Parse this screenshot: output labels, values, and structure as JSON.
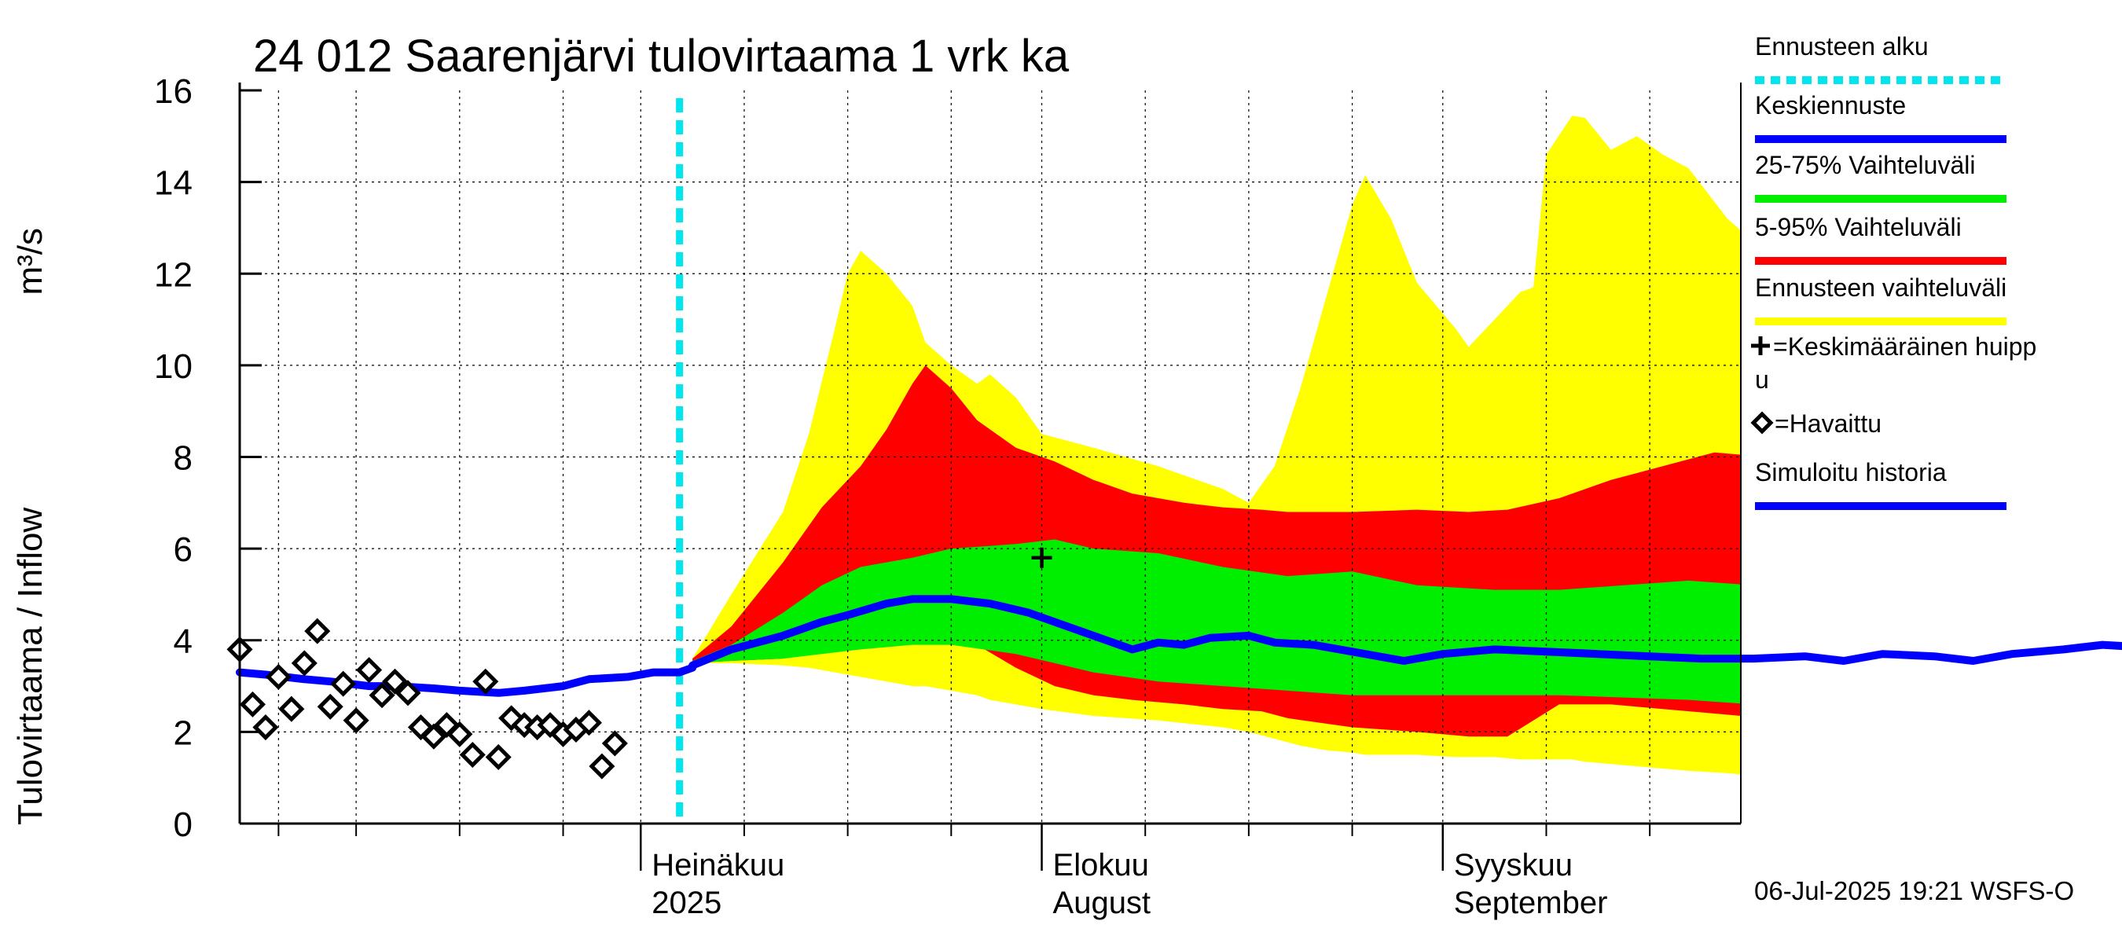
{
  "title": "24 012 Saarenjärvi tulovirtaama 1 vrk ka",
  "ylabel_fi": "Tulovirtaama / Inflow",
  "ylabel_unit": "m³/s",
  "timestamp": "06-Jul-2025 19:21 WSFS-O",
  "colors": {
    "forecast_start": "#00e5ee",
    "median": "#0000ff",
    "p25_75": "#00ee00",
    "p5_95": "#ff0000",
    "range": "#ffff00",
    "history": "#0000ff",
    "observed": "#000000"
  },
  "legend": [
    {
      "label": "Ennusteen alku",
      "kind": "dashed",
      "color": "#00e5ee"
    },
    {
      "label": "Keskiennuste",
      "kind": "line",
      "color": "#0000ff"
    },
    {
      "label": "25-75% Vaihteluväli",
      "kind": "line",
      "color": "#00ee00"
    },
    {
      "label": "5-95% Vaihteluväli",
      "kind": "line",
      "color": "#ff0000"
    },
    {
      "label": "Ennusteen vaihteluväli",
      "kind": "line",
      "color": "#ffff00"
    },
    {
      "label": "=Keskimääräinen huipp",
      "label2": "u",
      "kind": "plus",
      "color": "#000000"
    },
    {
      "label": "=Havaittu",
      "kind": "diamond",
      "color": "#000000"
    },
    {
      "label": "Simuloitu historia",
      "kind": "line",
      "color": "#0000ff"
    }
  ],
  "chart_data": {
    "type": "area",
    "title": "24 012 Saarenjärvi tulovirtaama 1 vrk ka",
    "ylabel": "Tulovirtaama / Inflow    m³/s",
    "ylim": [
      0,
      16
    ],
    "yticks": [
      "0",
      "2",
      "4",
      "6",
      "8",
      "10",
      "12",
      "14",
      "16"
    ],
    "xlim": [
      "2025-06-01",
      "2025-09-30"
    ],
    "month_labels": [
      {
        "date": "2025-07-01",
        "line1": "Heinäkuu",
        "line2": "2025"
      },
      {
        "date": "2025-08-01",
        "line1": "Elokuu",
        "line2": "August"
      },
      {
        "date": "2025-09-01",
        "line1": "Syyskuu",
        "line2": "September"
      }
    ],
    "forecast_start": "2025-07-04",
    "grid": true,
    "legend_position": "right",
    "bands": {
      "range": [
        {
          "date": "2025-07-05",
          "lo": 3.5,
          "hi": 3.6
        },
        {
          "date": "2025-07-08",
          "lo": 3.5,
          "hi": 5.0
        },
        {
          "date": "2025-07-12",
          "lo": 3.45,
          "hi": 6.8
        },
        {
          "date": "2025-07-14",
          "lo": 3.4,
          "hi": 8.5
        },
        {
          "date": "2025-07-16",
          "lo": 3.3,
          "hi": 10.8
        },
        {
          "date": "2025-07-17",
          "lo": 3.25,
          "hi": 12.0
        },
        {
          "date": "2025-07-18",
          "lo": 3.2,
          "hi": 12.5
        },
        {
          "date": "2025-07-20",
          "lo": 3.1,
          "hi": 12.0
        },
        {
          "date": "2025-07-22",
          "lo": 3.0,
          "hi": 11.3
        },
        {
          "date": "2025-07-23",
          "lo": 3.0,
          "hi": 10.5
        },
        {
          "date": "2025-07-25",
          "lo": 2.9,
          "hi": 10.0
        },
        {
          "date": "2025-07-27",
          "lo": 2.8,
          "hi": 9.6
        },
        {
          "date": "2025-07-28",
          "lo": 2.7,
          "hi": 9.8
        },
        {
          "date": "2025-07-30",
          "lo": 2.6,
          "hi": 9.3
        },
        {
          "date": "2025-08-01",
          "lo": 2.5,
          "hi": 8.5
        },
        {
          "date": "2025-08-05",
          "lo": 2.35,
          "hi": 8.2
        },
        {
          "date": "2025-08-10",
          "lo": 2.25,
          "hi": 7.8
        },
        {
          "date": "2025-08-15",
          "lo": 2.1,
          "hi": 7.3
        },
        {
          "date": "2025-08-17",
          "lo": 2.0,
          "hi": 7.0
        },
        {
          "date": "2025-08-19",
          "lo": 1.85,
          "hi": 7.8
        },
        {
          "date": "2025-08-21",
          "lo": 1.7,
          "hi": 9.5
        },
        {
          "date": "2025-08-23",
          "lo": 1.6,
          "hi": 11.5
        },
        {
          "date": "2025-08-25",
          "lo": 1.55,
          "hi": 13.5
        },
        {
          "date": "2025-08-26",
          "lo": 1.5,
          "hi": 14.15
        },
        {
          "date": "2025-08-28",
          "lo": 1.5,
          "hi": 13.2
        },
        {
          "date": "2025-08-30",
          "lo": 1.5,
          "hi": 11.8
        },
        {
          "date": "2025-09-02",
          "lo": 1.45,
          "hi": 10.8
        },
        {
          "date": "2025-09-03",
          "lo": 1.45,
          "hi": 10.4
        },
        {
          "date": "2025-09-05",
          "lo": 1.45,
          "hi": 11.0
        },
        {
          "date": "2025-09-07",
          "lo": 1.4,
          "hi": 11.6
        },
        {
          "date": "2025-09-08",
          "lo": 1.4,
          "hi": 11.7
        },
        {
          "date": "2025-09-09",
          "lo": 1.4,
          "hi": 14.6
        },
        {
          "date": "2025-09-11",
          "lo": 1.4,
          "hi": 15.45
        },
        {
          "date": "2025-09-12",
          "lo": 1.35,
          "hi": 15.4
        },
        {
          "date": "2025-09-14",
          "lo": 1.3,
          "hi": 14.7
        },
        {
          "date": "2025-09-16",
          "lo": 1.25,
          "hi": 15.0
        },
        {
          "date": "2025-09-18",
          "lo": 1.2,
          "hi": 14.6
        },
        {
          "date": "2025-09-20",
          "lo": 1.15,
          "hi": 14.3
        },
        {
          "date": "2025-09-23",
          "lo": 1.1,
          "hi": 13.2
        },
        {
          "date": "2025-09-25",
          "lo": 1.05,
          "hi": 12.7
        },
        {
          "date": "2025-09-27",
          "lo": 1.15,
          "hi": 11.5
        },
        {
          "date": "2025-09-29",
          "lo": 1.15,
          "hi": 10.7
        },
        {
          "date": "2025-10-01",
          "lo": 1.1,
          "hi": 10.4
        },
        {
          "date": "2025-10-03",
          "lo": 1.1,
          "hi": 10.7
        },
        {
          "date": "2025-10-04",
          "lo": 1.1,
          "hi": 11.5
        },
        {
          "date": "2025-10-05",
          "lo": 1.1,
          "hi": 13.7
        },
        {
          "date": "2025-10-06",
          "lo": 1.15,
          "hi": 14.0
        },
        {
          "date": "2025-10-08",
          "lo": 1.15,
          "hi": 13.5
        },
        {
          "date": "2025-10-10",
          "lo": 1.15,
          "hi": 12.5
        },
        {
          "date": "2025-10-12",
          "lo": 1.2,
          "hi": 11.0
        },
        {
          "date": "2025-10-13",
          "lo": 1.2,
          "hi": 10.6
        },
        {
          "date": "2025-10-16",
          "lo": 1.35,
          "hi": 10.3
        },
        {
          "date": "2025-10-19",
          "lo": 1.4,
          "hi": 10.0
        },
        {
          "date": "2025-10-22",
          "lo": 1.4,
          "hi": 9.5
        }
      ],
      "p5_95": [
        {
          "date": "2025-07-05",
          "lo": 3.5,
          "hi": 3.6
        },
        {
          "date": "2025-07-08",
          "lo": 3.55,
          "hi": 4.3
        },
        {
          "date": "2025-07-12",
          "lo": 3.6,
          "hi": 5.7
        },
        {
          "date": "2025-07-15",
          "lo": 3.8,
          "hi": 6.9
        },
        {
          "date": "2025-07-18",
          "lo": 4.0,
          "hi": 7.8
        },
        {
          "date": "2025-07-20",
          "lo": 4.1,
          "hi": 8.6
        },
        {
          "date": "2025-07-22",
          "lo": 4.2,
          "hi": 9.6
        },
        {
          "date": "2025-07-23",
          "lo": 4.2,
          "hi": 10.0
        },
        {
          "date": "2025-07-25",
          "lo": 4.1,
          "hi": 9.5
        },
        {
          "date": "2025-07-27",
          "lo": 3.9,
          "hi": 8.8
        },
        {
          "date": "2025-07-30",
          "lo": 3.4,
          "hi": 8.2
        },
        {
          "date": "2025-08-02",
          "lo": 3.0,
          "hi": 7.9
        },
        {
          "date": "2025-08-05",
          "lo": 2.8,
          "hi": 7.5
        },
        {
          "date": "2025-08-08",
          "lo": 2.7,
          "hi": 7.2
        },
        {
          "date": "2025-08-12",
          "lo": 2.6,
          "hi": 7.0
        },
        {
          "date": "2025-08-15",
          "lo": 2.5,
          "hi": 6.9
        },
        {
          "date": "2025-08-18",
          "lo": 2.45,
          "hi": 6.85
        },
        {
          "date": "2025-08-20",
          "lo": 2.3,
          "hi": 6.8
        },
        {
          "date": "2025-08-25",
          "lo": 2.1,
          "hi": 6.8
        },
        {
          "date": "2025-08-30",
          "lo": 2.0,
          "hi": 6.85
        },
        {
          "date": "2025-09-03",
          "lo": 1.9,
          "hi": 6.8
        },
        {
          "date": "2025-09-06",
          "lo": 1.9,
          "hi": 6.85
        },
        {
          "date": "2025-09-10",
          "lo": 2.6,
          "hi": 7.1
        },
        {
          "date": "2025-09-14",
          "lo": 2.6,
          "hi": 7.5
        },
        {
          "date": "2025-09-18",
          "lo": 2.5,
          "hi": 7.8
        },
        {
          "date": "2025-09-22",
          "lo": 2.4,
          "hi": 8.1
        },
        {
          "date": "2025-09-26",
          "lo": 2.3,
          "hi": 8.0
        },
        {
          "date": "2025-09-29",
          "lo": 2.2,
          "hi": 7.8
        },
        {
          "date": "2025-10-01",
          "lo": 2.3,
          "hi": 8.4
        },
        {
          "date": "2025-10-04",
          "lo": 2.3,
          "hi": 9.0
        },
        {
          "date": "2025-10-07",
          "lo": 2.2,
          "hi": 9.7
        },
        {
          "date": "2025-10-09",
          "lo": 2.3,
          "hi": 9.9
        },
        {
          "date": "2025-10-12",
          "lo": 2.2,
          "hi": 9.6
        },
        {
          "date": "2025-10-15",
          "lo": 2.5,
          "hi": 9.5
        },
        {
          "date": "2025-10-18",
          "lo": 2.4,
          "hi": 9.3
        },
        {
          "date": "2025-10-21",
          "lo": 2.7,
          "hi": 9.2
        },
        {
          "date": "2025-10-23",
          "lo": 2.9,
          "hi": 9.0
        }
      ],
      "p25_75": [
        {
          "date": "2025-07-05",
          "lo": 3.5,
          "hi": 3.55
        },
        {
          "date": "2025-07-08",
          "lo": 3.55,
          "hi": 3.9
        },
        {
          "date": "2025-07-12",
          "lo": 3.6,
          "hi": 4.6
        },
        {
          "date": "2025-07-15",
          "lo": 3.7,
          "hi": 5.2
        },
        {
          "date": "2025-07-18",
          "lo": 3.8,
          "hi": 5.6
        },
        {
          "date": "2025-07-22",
          "lo": 3.9,
          "hi": 5.8
        },
        {
          "date": "2025-07-25",
          "lo": 3.9,
          "hi": 6.0
        },
        {
          "date": "2025-07-30",
          "lo": 3.7,
          "hi": 6.1
        },
        {
          "date": "2025-08-02",
          "lo": 3.5,
          "hi": 6.2
        },
        {
          "date": "2025-08-05",
          "lo": 3.3,
          "hi": 6.0
        },
        {
          "date": "2025-08-10",
          "lo": 3.1,
          "hi": 5.9
        },
        {
          "date": "2025-08-15",
          "lo": 3.0,
          "hi": 5.6
        },
        {
          "date": "2025-08-20",
          "lo": 2.9,
          "hi": 5.4
        },
        {
          "date": "2025-08-25",
          "lo": 2.8,
          "hi": 5.5
        },
        {
          "date": "2025-08-30",
          "lo": 2.8,
          "hi": 5.2
        },
        {
          "date": "2025-09-05",
          "lo": 2.8,
          "hi": 5.1
        },
        {
          "date": "2025-09-10",
          "lo": 2.8,
          "hi": 5.1
        },
        {
          "date": "2025-09-15",
          "lo": 2.75,
          "hi": 5.2
        },
        {
          "date": "2025-09-20",
          "lo": 2.7,
          "hi": 5.3
        },
        {
          "date": "2025-09-25",
          "lo": 2.6,
          "hi": 5.2
        },
        {
          "date": "2025-09-30",
          "lo": 2.6,
          "hi": 5.3
        },
        {
          "date": "2025-10-05",
          "lo": 2.7,
          "hi": 5.3
        },
        {
          "date": "2025-10-10",
          "lo": 2.75,
          "hi": 5.4
        },
        {
          "date": "2025-10-15",
          "lo": 2.8,
          "hi": 5.6
        },
        {
          "date": "2025-10-20",
          "lo": 2.9,
          "hi": 5.4
        },
        {
          "date": "2025-10-23",
          "lo": 3.0,
          "hi": 5.5
        }
      ]
    },
    "series": [
      {
        "name": "Simuloitu historia",
        "points": [
          {
            "date": "2025-05-31",
            "y": 3.3
          },
          {
            "date": "2025-06-02",
            "y": 3.25
          },
          {
            "date": "2025-06-05",
            "y": 3.15
          },
          {
            "date": "2025-06-07",
            "y": 3.1
          },
          {
            "date": "2025-06-10",
            "y": 3.0
          },
          {
            "date": "2025-06-12",
            "y": 3.0
          },
          {
            "date": "2025-06-15",
            "y": 2.95
          },
          {
            "date": "2025-06-17",
            "y": 2.9
          },
          {
            "date": "2025-06-20",
            "y": 2.85
          },
          {
            "date": "2025-06-22",
            "y": 2.9
          },
          {
            "date": "2025-06-25",
            "y": 3.0
          },
          {
            "date": "2025-06-27",
            "y": 3.15
          },
          {
            "date": "2025-06-30",
            "y": 3.2
          },
          {
            "date": "2025-07-02",
            "y": 3.3
          },
          {
            "date": "2025-07-04",
            "y": 3.3
          },
          {
            "date": "2025-07-05",
            "y": 3.4
          }
        ]
      },
      {
        "name": "Keskiennuste",
        "points": [
          {
            "date": "2025-07-05",
            "y": 3.45
          },
          {
            "date": "2025-07-08",
            "y": 3.8
          },
          {
            "date": "2025-07-12",
            "y": 4.1
          },
          {
            "date": "2025-07-15",
            "y": 4.4
          },
          {
            "date": "2025-07-17",
            "y": 4.55
          },
          {
            "date": "2025-07-20",
            "y": 4.8
          },
          {
            "date": "2025-07-22",
            "y": 4.9
          },
          {
            "date": "2025-07-25",
            "y": 4.9
          },
          {
            "date": "2025-07-28",
            "y": 4.8
          },
          {
            "date": "2025-07-31",
            "y": 4.6
          },
          {
            "date": "2025-08-03",
            "y": 4.3
          },
          {
            "date": "2025-08-06",
            "y": 4.0
          },
          {
            "date": "2025-08-08",
            "y": 3.8
          },
          {
            "date": "2025-08-10",
            "y": 3.95
          },
          {
            "date": "2025-08-12",
            "y": 3.9
          },
          {
            "date": "2025-08-14",
            "y": 4.05
          },
          {
            "date": "2025-08-17",
            "y": 4.1
          },
          {
            "date": "2025-08-19",
            "y": 3.95
          },
          {
            "date": "2025-08-22",
            "y": 3.9
          },
          {
            "date": "2025-08-26",
            "y": 3.7
          },
          {
            "date": "2025-08-29",
            "y": 3.55
          },
          {
            "date": "2025-09-01",
            "y": 3.7
          },
          {
            "date": "2025-09-05",
            "y": 3.8
          },
          {
            "date": "2025-09-09",
            "y": 3.75
          },
          {
            "date": "2025-09-13",
            "y": 3.7
          },
          {
            "date": "2025-09-17",
            "y": 3.65
          },
          {
            "date": "2025-09-21",
            "y": 3.6
          },
          {
            "date": "2025-09-25",
            "y": 3.6
          },
          {
            "date": "2025-09-29",
            "y": 3.65
          },
          {
            "date": "2025-10-02",
            "y": 3.55
          },
          {
            "date": "2025-10-05",
            "y": 3.7
          },
          {
            "date": "2025-10-09",
            "y": 3.65
          },
          {
            "date": "2025-10-12",
            "y": 3.55
          },
          {
            "date": "2025-10-15",
            "y": 3.7
          },
          {
            "date": "2025-10-19",
            "y": 3.8
          },
          {
            "date": "2025-10-22",
            "y": 3.9
          },
          {
            "date": "2025-10-25",
            "y": 3.85
          }
        ]
      }
    ],
    "observed": [
      {
        "date": "2025-05-31",
        "y": 3.8
      },
      {
        "date": "2025-06-01",
        "y": 2.6
      },
      {
        "date": "2025-06-02",
        "y": 2.1
      },
      {
        "date": "2025-06-03",
        "y": 3.2
      },
      {
        "date": "2025-06-04",
        "y": 2.5
      },
      {
        "date": "2025-06-05",
        "y": 3.5
      },
      {
        "date": "2025-06-06",
        "y": 4.2
      },
      {
        "date": "2025-06-07",
        "y": 2.55
      },
      {
        "date": "2025-06-08",
        "y": 3.05
      },
      {
        "date": "2025-06-09",
        "y": 2.25
      },
      {
        "date": "2025-06-10",
        "y": 3.35
      },
      {
        "date": "2025-06-11",
        "y": 2.8
      },
      {
        "date": "2025-06-12",
        "y": 3.1
      },
      {
        "date": "2025-06-13",
        "y": 2.85
      },
      {
        "date": "2025-06-14",
        "y": 2.1
      },
      {
        "date": "2025-06-15",
        "y": 1.9
      },
      {
        "date": "2025-06-16",
        "y": 2.15
      },
      {
        "date": "2025-06-17",
        "y": 1.95
      },
      {
        "date": "2025-06-18",
        "y": 1.5
      },
      {
        "date": "2025-06-19",
        "y": 3.1
      },
      {
        "date": "2025-06-20",
        "y": 1.45
      },
      {
        "date": "2025-06-21",
        "y": 2.3
      },
      {
        "date": "2025-06-22",
        "y": 2.15
      },
      {
        "date": "2025-06-23",
        "y": 2.1
      },
      {
        "date": "2025-06-24",
        "y": 2.15
      },
      {
        "date": "2025-06-25",
        "y": 1.95
      },
      {
        "date": "2025-06-26",
        "y": 2.05
      },
      {
        "date": "2025-06-27",
        "y": 2.2
      },
      {
        "date": "2025-06-28",
        "y": 1.25
      },
      {
        "date": "2025-06-29",
        "y": 1.75
      }
    ],
    "mean_peak": {
      "date": "2025-08-01",
      "y": 5.8
    }
  }
}
